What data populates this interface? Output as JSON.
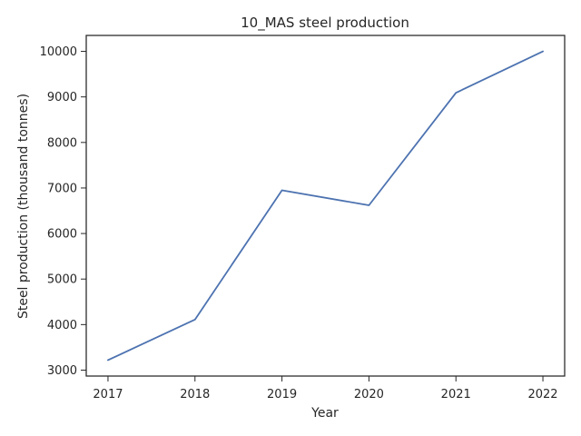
{
  "chart_data": {
    "type": "line",
    "title": "10_MAS steel production",
    "xlabel": "Year",
    "ylabel": "Steel production (thousand tonnes)",
    "x": [
      2017,
      2018,
      2019,
      2020,
      2021,
      2022
    ],
    "series": [
      {
        "values": [
          3220,
          4110,
          6950,
          6620,
          9090,
          10000
        ],
        "color": "#4c72b0"
      }
    ],
    "x_ticks": [
      2017,
      2018,
      2019,
      2020,
      2021,
      2022
    ],
    "x_tick_labels": [
      "2017",
      "2018",
      "2019",
      "2020",
      "2021",
      "2022"
    ],
    "y_ticks": [
      3000,
      4000,
      5000,
      6000,
      7000,
      8000,
      9000,
      10000
    ],
    "y_tick_labels": [
      "3000",
      "4000",
      "5000",
      "6000",
      "7000",
      "8000",
      "9000",
      "10000"
    ],
    "xlim": [
      2016.75,
      2022.25
    ],
    "ylim": [
      2870,
      10350
    ],
    "grid": false,
    "legend": "none"
  }
}
